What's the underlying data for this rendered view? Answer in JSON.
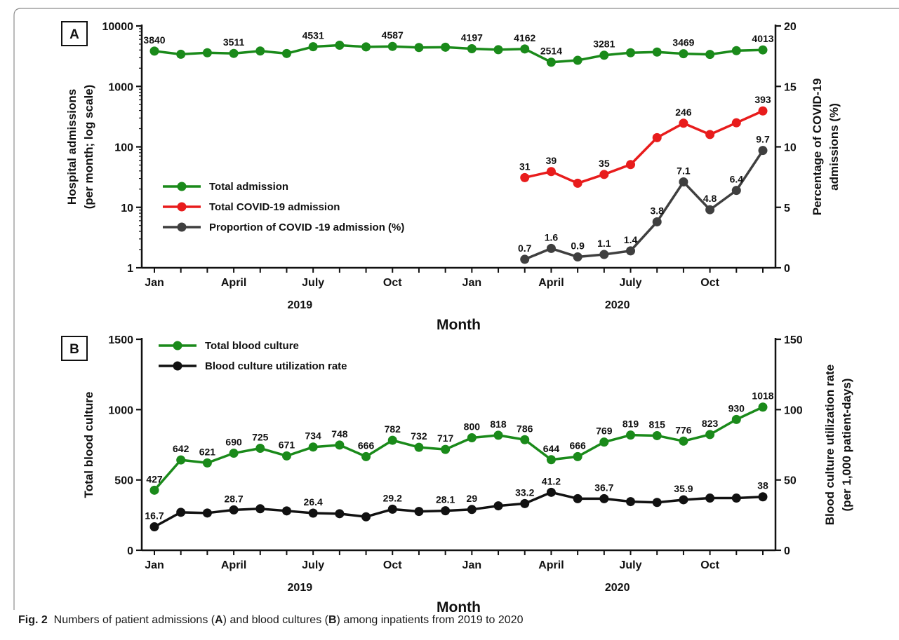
{
  "caption": {
    "label": "Fig. 2",
    "text_1": "Numbers of patient admissions (",
    "a": "A",
    "text_2": ") and blood cultures (",
    "b": "B",
    "text_3": ") among inpatients from 2019 to 2020"
  },
  "chart_data": [
    {
      "panel": "A",
      "type": "line",
      "x_tick_labels": [
        "Jan",
        "April",
        "July",
        "Oct",
        "Jan",
        "April",
        "July",
        "Oct"
      ],
      "x_tick_month_index": [
        1,
        4,
        7,
        10,
        13,
        16,
        19,
        22
      ],
      "x_range": [
        1,
        24
      ],
      "year_labels": [
        "2019",
        "2020"
      ],
      "xlabel": "Month",
      "ylabel_left_line1": "Hospital admissions",
      "ylabel_left_line2": "(per month; log scale)",
      "ylabel_right_line1": "Percentage of COVID-19",
      "ylabel_right_line2": "admissions (%)",
      "y_left_scale": "log",
      "y_left_range": [
        1,
        10000
      ],
      "y_left_ticks": [
        "1",
        "10",
        "100",
        "1000",
        "10000"
      ],
      "y_right_range": [
        0,
        20
      ],
      "y_right_ticks": [
        "0",
        "5",
        "10",
        "15",
        "20"
      ],
      "legend_placement": "middle-left",
      "series": [
        {
          "name": "Total admission",
          "color": "#1a8a1a",
          "axis": "left",
          "month_index": [
            1,
            2,
            3,
            4,
            5,
            6,
            7,
            8,
            9,
            10,
            11,
            12,
            13,
            14,
            15,
            16,
            17,
            18,
            19,
            20,
            21,
            22,
            23,
            24
          ],
          "values": [
            3840,
            3400,
            3600,
            3511,
            3850,
            3500,
            4531,
            4800,
            4500,
            4587,
            4400,
            4450,
            4197,
            4050,
            4162,
            2514,
            2700,
            3281,
            3600,
            3700,
            3469,
            3380,
            3900,
            4013
          ],
          "labeled": [
            {
              "i": 0,
              "text": "3840"
            },
            {
              "i": 3,
              "text": "3511"
            },
            {
              "i": 6,
              "text": "4531"
            },
            {
              "i": 9,
              "text": "4587"
            },
            {
              "i": 12,
              "text": "4197"
            },
            {
              "i": 14,
              "text": "4162"
            },
            {
              "i": 15,
              "text": "2514"
            },
            {
              "i": 17,
              "text": "3281"
            },
            {
              "i": 20,
              "text": "3469"
            },
            {
              "i": 23,
              "text": "4013"
            }
          ]
        },
        {
          "name": "Total COVID-19 admission",
          "color": "#e81c1c",
          "axis": "left",
          "month_index": [
            15,
            16,
            17,
            18,
            19,
            20,
            21,
            22,
            23,
            24
          ],
          "values": [
            31,
            39,
            25,
            35,
            51,
            142,
            246,
            160,
            250,
            393
          ],
          "labeled": [
            {
              "i": 0,
              "text": "31"
            },
            {
              "i": 1,
              "text": "39"
            },
            {
              "i": 3,
              "text": "35"
            },
            {
              "i": 6,
              "text": "246"
            },
            {
              "i": 9,
              "text": "393"
            }
          ]
        },
        {
          "name": "Proportion of COVID -19 admission (%)",
          "color": "#3f3f3f",
          "axis": "right",
          "month_index": [
            15,
            16,
            17,
            18,
            19,
            20,
            21,
            22,
            23,
            24
          ],
          "values": [
            0.7,
            1.6,
            0.9,
            1.1,
            1.4,
            3.8,
            7.1,
            4.8,
            6.4,
            9.7
          ],
          "labeled": [
            {
              "i": 0,
              "text": "0.7"
            },
            {
              "i": 1,
              "text": "1.6"
            },
            {
              "i": 2,
              "text": "0.9"
            },
            {
              "i": 3,
              "text": "1.1"
            },
            {
              "i": 4,
              "text": "1.4"
            },
            {
              "i": 5,
              "text": "3.8"
            },
            {
              "i": 6,
              "text": "7.1"
            },
            {
              "i": 7,
              "text": "4.8"
            },
            {
              "i": 8,
              "text": "6.4"
            },
            {
              "i": 9,
              "text": "9.7"
            }
          ]
        }
      ]
    },
    {
      "panel": "B",
      "type": "line",
      "x_tick_labels": [
        "Jan",
        "April",
        "July",
        "Oct",
        "Jan",
        "April",
        "July",
        "Oct"
      ],
      "x_tick_month_index": [
        1,
        4,
        7,
        10,
        13,
        16,
        19,
        22
      ],
      "x_range": [
        1,
        24
      ],
      "year_labels": [
        "2019",
        "2020"
      ],
      "xlabel": "Month",
      "ylabel_left": "Total blood culture",
      "ylabel_right_line1": "Blood culture utilization rate",
      "ylabel_right_line2": "(per 1,000 patient-days)",
      "y_left_range": [
        0,
        1500
      ],
      "y_left_ticks": [
        "0",
        "500",
        "1000",
        "1500"
      ],
      "y_right_range": [
        0,
        150
      ],
      "y_right_ticks": [
        "0",
        "50",
        "100",
        "150"
      ],
      "legend_placement": "top-left",
      "series": [
        {
          "name": "Total blood culture",
          "color": "#1a8a1a",
          "axis": "left",
          "month_index": [
            1,
            2,
            3,
            4,
            5,
            6,
            7,
            8,
            9,
            10,
            11,
            12,
            13,
            14,
            15,
            16,
            17,
            18,
            19,
            20,
            21,
            22,
            23,
            24
          ],
          "values": [
            427,
            642,
            621,
            690,
            725,
            671,
            734,
            748,
            666,
            782,
            732,
            717,
            800,
            818,
            786,
            644,
            666,
            769,
            819,
            815,
            776,
            823,
            930,
            1018
          ],
          "labeled": [
            {
              "i": 0,
              "text": "427"
            },
            {
              "i": 1,
              "text": "642"
            },
            {
              "i": 2,
              "text": "621"
            },
            {
              "i": 3,
              "text": "690"
            },
            {
              "i": 4,
              "text": "725"
            },
            {
              "i": 5,
              "text": "671"
            },
            {
              "i": 6,
              "text": "734"
            },
            {
              "i": 7,
              "text": "748"
            },
            {
              "i": 8,
              "text": "666"
            },
            {
              "i": 9,
              "text": "782"
            },
            {
              "i": 10,
              "text": "732"
            },
            {
              "i": 11,
              "text": "717"
            },
            {
              "i": 12,
              "text": "800"
            },
            {
              "i": 13,
              "text": "818"
            },
            {
              "i": 14,
              "text": "786"
            },
            {
              "i": 15,
              "text": "644"
            },
            {
              "i": 16,
              "text": "666"
            },
            {
              "i": 17,
              "text": "769"
            },
            {
              "i": 18,
              "text": "819"
            },
            {
              "i": 19,
              "text": "815"
            },
            {
              "i": 20,
              "text": "776"
            },
            {
              "i": 21,
              "text": "823"
            },
            {
              "i": 22,
              "text": "930"
            },
            {
              "i": 23,
              "text": "1018"
            }
          ]
        },
        {
          "name": "Blood culture utilization rate",
          "color": "#111111",
          "axis": "right",
          "month_index": [
            1,
            2,
            3,
            4,
            5,
            6,
            7,
            8,
            9,
            10,
            11,
            12,
            13,
            14,
            15,
            16,
            17,
            18,
            19,
            20,
            21,
            22,
            23,
            24
          ],
          "values": [
            16.7,
            27,
            26.5,
            28.7,
            29.5,
            28,
            26.4,
            26,
            23.8,
            29.2,
            27.6,
            28.1,
            29,
            31.6,
            33.2,
            41.2,
            36.7,
            36.7,
            34.6,
            34,
            35.9,
            37.1,
            37.1,
            38
          ],
          "labeled": [
            {
              "i": 0,
              "text": "16.7"
            },
            {
              "i": 3,
              "text": "28.7"
            },
            {
              "i": 6,
              "text": "26.4"
            },
            {
              "i": 9,
              "text": "29.2"
            },
            {
              "i": 11,
              "text": "28.1"
            },
            {
              "i": 12,
              "text": "29"
            },
            {
              "i": 14,
              "text": "33.2"
            },
            {
              "i": 15,
              "text": "41.2"
            },
            {
              "i": 17,
              "text": "36.7"
            },
            {
              "i": 20,
              "text": "35.9"
            },
            {
              "i": 23,
              "text": "38"
            }
          ]
        }
      ]
    }
  ]
}
